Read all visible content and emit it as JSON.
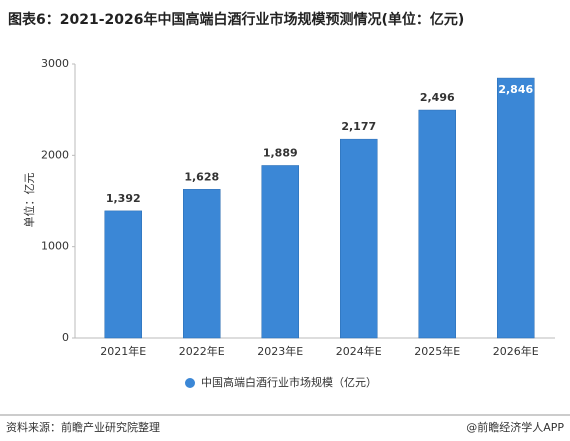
{
  "chart_data": {
    "type": "bar",
    "title": "图表6：2021-2026年中国高端白酒行业市场规模预测情况(单位：亿元)",
    "y_label": "单位：亿元",
    "categories": [
      "2021年E",
      "2022年E",
      "2023年E",
      "2024年E",
      "2025年E",
      "2026年E"
    ],
    "series": [
      {
        "name": "中国高端白酒行业市场规模（亿元）",
        "color": "#3b87d6",
        "values": [
          1392,
          1628,
          1889,
          2177,
          2496,
          2846
        ],
        "value_labels": [
          "1,392",
          "1,628",
          "1,889",
          "2,177",
          "2,496",
          "2,846"
        ]
      }
    ],
    "ylim": [
      0,
      3000
    ],
    "yticks": [
      0,
      1000,
      2000,
      3000
    ],
    "grid": false,
    "legend": "bottom",
    "source": "资料来源：前瞻产业研究院整理",
    "credit": "@前瞻经济学人APP"
  }
}
